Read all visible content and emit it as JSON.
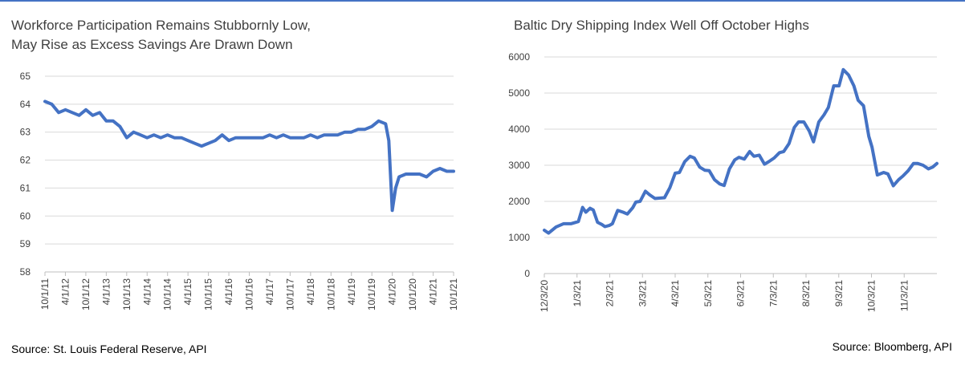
{
  "left_chart": {
    "title_line1": "Workforce Participation Remains Stubbornly Low,",
    "title_line2": "May Rise as Excess Savings Are Drawn Down",
    "source": "Source: St. Louis Federal Reserve, API"
  },
  "right_chart": {
    "title": "Baltic Dry Shipping Index Well Off October Highs",
    "source": "Source: Bloomberg, API"
  },
  "colors": {
    "line": "#4472c4",
    "grid": "#d9d9d9",
    "axis": "#bfbfbf",
    "accent_rule": "#4472c4"
  },
  "chart_data": [
    {
      "type": "line",
      "title": "Workforce Participation Remains Stubbornly Low, May Rise as Excess Savings Are Drawn Down",
      "ylim": [
        58,
        65
      ],
      "yticks": [
        58,
        59,
        60,
        61,
        62,
        63,
        64,
        65
      ],
      "xlim": [
        "2011-10-01",
        "2021-10-01"
      ],
      "xtick_labels": [
        "10/1/11",
        "4/1/12",
        "10/1/12",
        "4/1/13",
        "10/1/13",
        "4/1/14",
        "10/1/14",
        "4/1/15",
        "10/1/15",
        "4/1/16",
        "10/1/16",
        "4/1/17",
        "10/1/17",
        "4/1/18",
        "10/1/18",
        "4/1/19",
        "10/1/19",
        "4/1/20",
        "10/1/20",
        "4/1/21",
        "10/1/21"
      ],
      "grid": true,
      "legend": "none",
      "series": [
        {
          "x": [
            "2011-10-01",
            "2011-12-01",
            "2012-02-01",
            "2012-04-01",
            "2012-06-01",
            "2012-08-01",
            "2012-10-01",
            "2012-12-01",
            "2013-02-01",
            "2013-04-01",
            "2013-06-01",
            "2013-08-01",
            "2013-10-01",
            "2013-12-01",
            "2014-02-01",
            "2014-04-01",
            "2014-06-01",
            "2014-08-01",
            "2014-10-01",
            "2014-12-01",
            "2015-02-01",
            "2015-04-01",
            "2015-06-01",
            "2015-08-01",
            "2015-10-01",
            "2015-12-01",
            "2016-02-01",
            "2016-04-01",
            "2016-06-01",
            "2016-08-01",
            "2016-10-01",
            "2016-12-01",
            "2017-02-01",
            "2017-04-01",
            "2017-06-01",
            "2017-08-01",
            "2017-10-01",
            "2017-12-01",
            "2018-02-01",
            "2018-04-01",
            "2018-06-01",
            "2018-08-01",
            "2018-10-01",
            "2018-12-01",
            "2019-02-01",
            "2019-04-01",
            "2019-06-01",
            "2019-08-01",
            "2019-10-01",
            "2019-12-01",
            "2020-02-01",
            "2020-03-01",
            "2020-04-01",
            "2020-05-01",
            "2020-06-01",
            "2020-08-01",
            "2020-10-01",
            "2020-12-01",
            "2021-02-01",
            "2021-04-01",
            "2021-06-01",
            "2021-08-01",
            "2021-10-01"
          ],
          "values": [
            64.1,
            64.0,
            63.7,
            63.8,
            63.7,
            63.6,
            63.8,
            63.6,
            63.7,
            63.4,
            63.4,
            63.2,
            62.8,
            63.0,
            62.9,
            62.8,
            62.9,
            62.8,
            62.9,
            62.8,
            62.8,
            62.7,
            62.6,
            62.5,
            62.6,
            62.7,
            62.9,
            62.7,
            62.8,
            62.8,
            62.8,
            62.8,
            62.8,
            62.9,
            62.8,
            62.9,
            62.8,
            62.8,
            62.8,
            62.9,
            62.8,
            62.9,
            62.9,
            62.9,
            63.0,
            63.0,
            63.1,
            63.1,
            63.2,
            63.4,
            63.3,
            62.7,
            60.2,
            61.0,
            61.4,
            61.5,
            61.5,
            61.5,
            61.4,
            61.6,
            61.7,
            61.6,
            61.6
          ]
        }
      ]
    },
    {
      "type": "line",
      "title": "Baltic Dry Shipping Index Well Off October Highs",
      "ylim": [
        0,
        6000
      ],
      "yticks": [
        0,
        1000,
        2000,
        3000,
        4000,
        5000,
        6000
      ],
      "xlim": [
        "2020-12-03",
        "2021-12-07"
      ],
      "xtick_labels": [
        "12/3/20",
        "1/3/21",
        "2/3/21",
        "3/3/21",
        "4/3/21",
        "5/3/21",
        "6/3/21",
        "7/3/21",
        "8/3/21",
        "9/3/21",
        "10/3/21",
        "11/3/21"
      ],
      "grid": true,
      "legend": "none",
      "series": [
        {
          "x": [
            "2020-12-03",
            "2020-12-07",
            "2020-12-14",
            "2020-12-21",
            "2020-12-28",
            "2021-01-04",
            "2021-01-08",
            "2021-01-11",
            "2021-01-15",
            "2021-01-18",
            "2021-01-22",
            "2021-01-26",
            "2021-01-29",
            "2021-02-02",
            "2021-02-05",
            "2021-02-10",
            "2021-02-15",
            "2021-02-19",
            "2021-02-24",
            "2021-02-27",
            "2021-03-03",
            "2021-03-08",
            "2021-03-12",
            "2021-03-17",
            "2021-03-22",
            "2021-03-26",
            "2021-03-31",
            "2021-04-05",
            "2021-04-09",
            "2021-04-14",
            "2021-04-19",
            "2021-04-23",
            "2021-04-28",
            "2021-05-03",
            "2021-05-07",
            "2021-05-12",
            "2021-05-17",
            "2021-05-21",
            "2021-05-26",
            "2021-05-31",
            "2021-06-04",
            "2021-06-09",
            "2021-06-14",
            "2021-06-18",
            "2021-06-23",
            "2021-06-28",
            "2021-07-02",
            "2021-07-07",
            "2021-07-12",
            "2021-07-16",
            "2021-07-21",
            "2021-07-26",
            "2021-07-30",
            "2021-08-04",
            "2021-08-09",
            "2021-08-13",
            "2021-08-18",
            "2021-08-23",
            "2021-08-27",
            "2021-09-01",
            "2021-09-06",
            "2021-09-10",
            "2021-09-15",
            "2021-09-20",
            "2021-09-24",
            "2021-09-29",
            "2021-10-04",
            "2021-10-07",
            "2021-10-12",
            "2021-10-18",
            "2021-10-22",
            "2021-10-27",
            "2021-11-01",
            "2021-11-05",
            "2021-11-10",
            "2021-11-15",
            "2021-11-19",
            "2021-11-24",
            "2021-11-29",
            "2021-12-03",
            "2021-12-07"
          ],
          "values": [
            1200,
            1120,
            1290,
            1380,
            1380,
            1440,
            1830,
            1700,
            1810,
            1760,
            1420,
            1360,
            1300,
            1330,
            1380,
            1750,
            1700,
            1650,
            1820,
            1980,
            2000,
            2280,
            2180,
            2080,
            2090,
            2100,
            2380,
            2780,
            2800,
            3100,
            3250,
            3200,
            2950,
            2860,
            2850,
            2600,
            2480,
            2440,
            2900,
            3150,
            3220,
            3170,
            3380,
            3250,
            3280,
            3030,
            3100,
            3200,
            3350,
            3380,
            3600,
            4050,
            4200,
            4200,
            3950,
            3650,
            4200,
            4400,
            4600,
            5200,
            5200,
            5650,
            5500,
            5200,
            4800,
            4650,
            3800,
            3500,
            2730,
            2800,
            2760,
            2430,
            2600,
            2700,
            2850,
            3050,
            3050,
            3000,
            2900,
            2950,
            3050
          ]
        }
      ]
    }
  ]
}
